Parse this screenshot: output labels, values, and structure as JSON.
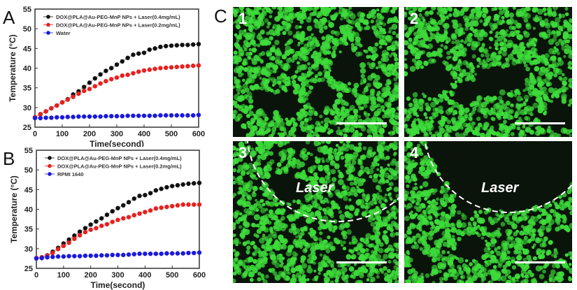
{
  "panels": {
    "A": "A",
    "B": "B",
    "C": "C"
  },
  "chart_data": [
    {
      "type": "line",
      "panel": "A",
      "xlabel": "Time(second)",
      "ylabel": "Temperature (°C)",
      "xlim": [
        0,
        600
      ],
      "ylim": [
        25,
        55
      ],
      "xticks": [
        "0",
        "100",
        "200",
        "300",
        "400",
        "500",
        "600"
      ],
      "yticks": [
        "25",
        "30",
        "35",
        "40",
        "45",
        "50",
        "55"
      ],
      "x": [
        0,
        20,
        40,
        60,
        80,
        100,
        120,
        140,
        160,
        180,
        200,
        220,
        240,
        260,
        280,
        300,
        320,
        340,
        360,
        380,
        400,
        420,
        440,
        460,
        480,
        500,
        520,
        540,
        560,
        580,
        600
      ],
      "series": [
        {
          "name": "DOX@PLA@Au-PEG-MnP NPs + Laser(0.4mg/mL)",
          "color": "#111111",
          "values": [
            27.5,
            28.3,
            29,
            29.8,
            30.5,
            31.3,
            32.1,
            33.3,
            34.1,
            35.2,
            36.3,
            37.4,
            38.4,
            39.3,
            40.0,
            40.9,
            41.7,
            42.6,
            43.4,
            43.7,
            43.9,
            44.7,
            45.0,
            45.4,
            45.6,
            45.7,
            45.8,
            45.9,
            45.9,
            46.0,
            46.1
          ]
        },
        {
          "name": "DOX@PLA@Au-PEG-MnP NPs + Laser(0.2mg/mL)",
          "color": "#e8201e",
          "values": [
            27.5,
            28.3,
            29,
            29.8,
            30.5,
            31.3,
            32.0,
            32.7,
            33.5,
            34.2,
            34.7,
            35.4,
            36.1,
            36.7,
            37.2,
            37.6,
            38.1,
            38.3,
            38.7,
            39.1,
            39.4,
            39.6,
            39.8,
            40.0,
            40.1,
            40.2,
            40.3,
            40.4,
            40.5,
            40.6,
            40.7
          ]
        },
        {
          "name": "Water",
          "color": "#1a1adc",
          "values": [
            27.3,
            27.3,
            27.4,
            27.4,
            27.5,
            27.5,
            27.6,
            27.6,
            27.7,
            27.7,
            27.7,
            27.7,
            27.7,
            27.8,
            27.8,
            27.8,
            27.8,
            27.9,
            27.9,
            27.9,
            27.9,
            27.9,
            27.9,
            28.0,
            28.0,
            28.0,
            28.0,
            28.0,
            28.0,
            28.0,
            28.1
          ]
        }
      ]
    },
    {
      "type": "line",
      "panel": "B",
      "xlabel": "Time(second)",
      "ylabel": "Temperature (°C)",
      "xlim": [
        0,
        600
      ],
      "ylim": [
        25,
        55
      ],
      "xticks": [
        "0",
        "100",
        "200",
        "300",
        "400",
        "500",
        "600"
      ],
      "yticks": [
        "25",
        "30",
        "35",
        "40",
        "45",
        "50",
        "55"
      ],
      "x": [
        0,
        20,
        40,
        60,
        80,
        100,
        120,
        140,
        160,
        180,
        200,
        220,
        240,
        260,
        280,
        300,
        320,
        340,
        360,
        380,
        400,
        420,
        440,
        460,
        480,
        500,
        520,
        540,
        560,
        580,
        600
      ],
      "series": [
        {
          "name": "DOX@PLA@Au-PEG-MnP NPs + Laser(0.4mg/mL)",
          "color": "#111111",
          "values": [
            27.6,
            27.8,
            28.3,
            29.2,
            30.2,
            31.3,
            32.3,
            33.3,
            34.3,
            35.2,
            36.1,
            36.9,
            37.7,
            38.6,
            39.5,
            40.3,
            41.0,
            41.8,
            42.7,
            43.4,
            43.6,
            44.1,
            44.8,
            45.2,
            45.6,
            45.9,
            46.1,
            46.3,
            46.5,
            46.6,
            46.7
          ]
        },
        {
          "name": "DOX@PLA@Au-PEG-MnP NPs + Laser(0.2mg/mL)",
          "color": "#e8201e",
          "values": [
            27.6,
            27.8,
            28.2,
            28.9,
            29.9,
            30.7,
            31.5,
            32.5,
            33.4,
            34.2,
            34.8,
            35.2,
            35.8,
            36.2,
            36.8,
            37.3,
            37.7,
            38.0,
            38.5,
            38.9,
            39.3,
            39.7,
            40.2,
            40.4,
            40.6,
            40.8,
            41.0,
            41.2,
            41.2,
            41.2,
            41.2
          ]
        },
        {
          "name": "RPMI 1640",
          "color": "#1a1adc",
          "values": [
            27.5,
            27.6,
            27.8,
            27.9,
            28.0,
            28.0,
            28.1,
            28.1,
            28.1,
            28.2,
            28.2,
            28.2,
            28.3,
            28.3,
            28.4,
            28.4,
            28.4,
            28.5,
            28.6,
            28.7,
            28.7,
            28.7,
            28.7,
            28.7,
            28.8,
            28.8,
            28.8,
            28.8,
            28.9,
            28.9,
            29.0
          ]
        }
      ]
    }
  ],
  "micro": {
    "labels": [
      "1",
      "2",
      "3",
      "4"
    ],
    "laser_label": "Laser",
    "color": "#3ddc3a"
  }
}
